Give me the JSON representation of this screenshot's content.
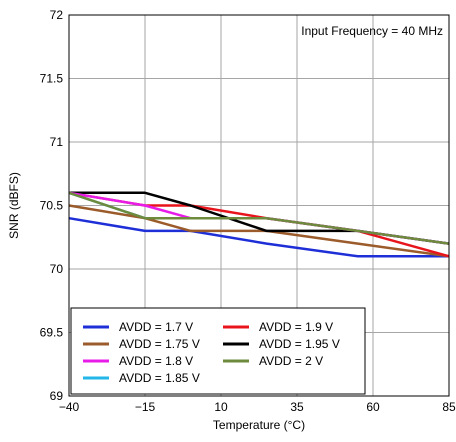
{
  "chart_data": {
    "type": "line",
    "title": "",
    "annotation": "Input Frequency = 40 MHz",
    "xlabel": "Temperature (°C)",
    "ylabel": "SNR (dBFS)",
    "xlim": [
      -40,
      85
    ],
    "ylim": [
      69,
      72
    ],
    "xticks": [
      -40,
      -15,
      10,
      35,
      60,
      85
    ],
    "xtick_labels": [
      "−40",
      "−15",
      "10",
      "35",
      "60",
      "85"
    ],
    "yticks": [
      69,
      69.5,
      70,
      70.5,
      71,
      71.5,
      72
    ],
    "ytick_labels": [
      "69",
      "69.5",
      "70",
      "70.5",
      "71",
      "71.5",
      "72"
    ],
    "grid": true,
    "legend_position": "bottom-left",
    "series": [
      {
        "name": "AVDD = 1.7 V",
        "color": "#1f2fd8",
        "x": [
          -40,
          -15,
          0,
          25,
          55,
          85
        ],
        "y": [
          70.4,
          70.3,
          70.3,
          70.2,
          70.1,
          70.1
        ]
      },
      {
        "name": "AVDD = 1.9 V",
        "color": "#e8141c",
        "x": [
          -40,
          -15,
          0,
          25,
          55,
          85
        ],
        "y": [
          70.6,
          70.5,
          70.5,
          70.4,
          70.3,
          70.1
        ]
      },
      {
        "name": "AVDD = 1.75 V",
        "color": "#9b5b2b",
        "x": [
          -40,
          -15,
          0,
          25,
          55,
          85
        ],
        "y": [
          70.5,
          70.4,
          70.3,
          70.3,
          70.2,
          70.1
        ]
      },
      {
        "name": "AVDD = 1.95 V",
        "color": "#000000",
        "x": [
          -40,
          -15,
          0,
          25,
          55,
          85
        ],
        "y": [
          70.6,
          70.6,
          70.5,
          70.3,
          70.3,
          70.2
        ]
      },
      {
        "name": "AVDD = 1.8 V",
        "color": "#e81ce8",
        "x": [
          -40,
          -15,
          0,
          25,
          55,
          85
        ],
        "y": [
          70.6,
          70.5,
          70.4,
          70.4,
          70.3,
          70.2
        ]
      },
      {
        "name": "AVDD = 2 V",
        "color": "#6e8b3d",
        "x": [
          -40,
          -15,
          0,
          25,
          55,
          85
        ],
        "y": [
          70.6,
          70.4,
          70.4,
          70.4,
          70.3,
          70.2
        ]
      },
      {
        "name": "AVDD = 1.85 V",
        "color": "#22b7e8",
        "x": [
          -40,
          -15,
          0,
          25,
          55,
          85
        ],
        "y": [
          70.6,
          70.4,
          70.4,
          70.4,
          70.3,
          70.2
        ]
      }
    ]
  }
}
